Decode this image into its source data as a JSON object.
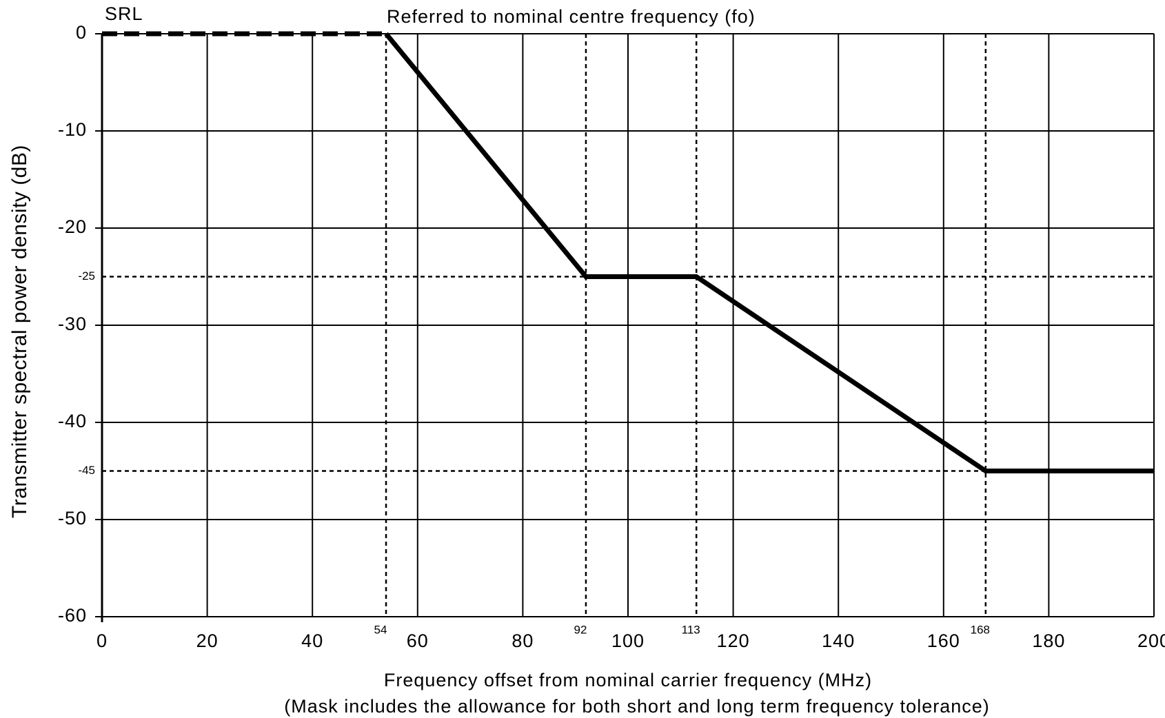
{
  "chart_data": {
    "type": "line",
    "annotation": "Referred to nominal centre frequency (fo)",
    "xlabel": [
      "Frequency offset from nominal carrier frequency (MHz)",
      "(Mask includes the allowance for both short and long term frequency tolerance)"
    ],
    "ylabel": "Transmitter spectral power density (dB)",
    "xlim": [
      0,
      200
    ],
    "ylim": [
      -60,
      0
    ],
    "xticks": [
      0,
      20,
      40,
      60,
      80,
      100,
      120,
      140,
      160,
      180,
      200
    ],
    "yticks": [
      0,
      -10,
      -20,
      -30,
      -40,
      -50,
      -60
    ],
    "marker_xticks": [
      54,
      92,
      113,
      168
    ],
    "marker_yticks": [
      -25,
      -45
    ],
    "grid": true,
    "series": [
      {
        "name": "SRL",
        "color": "#000000",
        "style": "dashed",
        "x": [
          0,
          54
        ],
        "values": [
          0,
          0
        ]
      },
      {
        "color": "#000000",
        "style": "solid",
        "x": [
          54,
          92,
          113,
          168,
          200
        ],
        "values": [
          0,
          -25,
          -25,
          -45,
          -45
        ]
      }
    ]
  }
}
